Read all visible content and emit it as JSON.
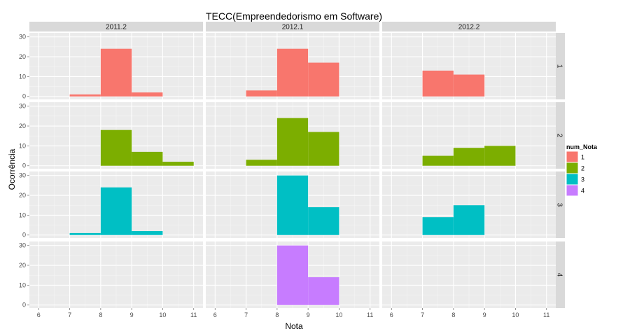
{
  "chart_data": {
    "type": "bar",
    "title": "TECC(Empreendedorismo em Software)",
    "xlabel": "Nota",
    "ylabel": "Ocorrência",
    "xlim": [
      5.7,
      11.3
    ],
    "ylim": [
      0,
      32
    ],
    "x_ticks": [
      "6",
      "7",
      "8",
      "9",
      "10",
      "11"
    ],
    "y_ticks": [
      "0",
      "10",
      "20",
      "30"
    ],
    "grid": true,
    "legend": {
      "title": "num_Nota",
      "position": "right"
    },
    "column_facets": [
      "2011.2",
      "2012.1",
      "2012.2"
    ],
    "row_facets": [
      "1",
      "2",
      "3",
      "4"
    ],
    "series": [
      {
        "name": "1",
        "color": "#F8766D"
      },
      {
        "name": "2",
        "color": "#7CAE00"
      },
      {
        "name": "3",
        "color": "#00BFC4"
      },
      {
        "name": "4",
        "color": "#C77CFF"
      }
    ],
    "panels": [
      {
        "col": "2011.2",
        "row": "1",
        "bars": [
          {
            "x0": 7,
            "x1": 8,
            "count": 1
          },
          {
            "x0": 8,
            "x1": 9,
            "count": 24
          },
          {
            "x0": 9,
            "x1": 10,
            "count": 2
          }
        ]
      },
      {
        "col": "2012.1",
        "row": "1",
        "bars": [
          {
            "x0": 7,
            "x1": 8,
            "count": 3
          },
          {
            "x0": 8,
            "x1": 9,
            "count": 24
          },
          {
            "x0": 9,
            "x1": 10,
            "count": 17
          }
        ]
      },
      {
        "col": "2012.2",
        "row": "1",
        "bars": [
          {
            "x0": 7,
            "x1": 8,
            "count": 13
          },
          {
            "x0": 8,
            "x1": 9,
            "count": 11
          }
        ]
      },
      {
        "col": "2011.2",
        "row": "2",
        "bars": [
          {
            "x0": 8,
            "x1": 9,
            "count": 18
          },
          {
            "x0": 9,
            "x1": 10,
            "count": 7
          },
          {
            "x0": 10,
            "x1": 11,
            "count": 2
          }
        ]
      },
      {
        "col": "2012.1",
        "row": "2",
        "bars": [
          {
            "x0": 7,
            "x1": 8,
            "count": 3
          },
          {
            "x0": 8,
            "x1": 9,
            "count": 24
          },
          {
            "x0": 9,
            "x1": 10,
            "count": 17
          }
        ]
      },
      {
        "col": "2012.2",
        "row": "2",
        "bars": [
          {
            "x0": 7,
            "x1": 8,
            "count": 5
          },
          {
            "x0": 8,
            "x1": 9,
            "count": 9
          },
          {
            "x0": 9,
            "x1": 10,
            "count": 10
          }
        ]
      },
      {
        "col": "2011.2",
        "row": "3",
        "bars": [
          {
            "x0": 7,
            "x1": 8,
            "count": 1
          },
          {
            "x0": 8,
            "x1": 9,
            "count": 24
          },
          {
            "x0": 9,
            "x1": 10,
            "count": 2
          }
        ]
      },
      {
        "col": "2012.1",
        "row": "3",
        "bars": [
          {
            "x0": 8,
            "x1": 9,
            "count": 30
          },
          {
            "x0": 9,
            "x1": 10,
            "count": 14
          }
        ]
      },
      {
        "col": "2012.2",
        "row": "3",
        "bars": [
          {
            "x0": 7,
            "x1": 8,
            "count": 9
          },
          {
            "x0": 8,
            "x1": 9,
            "count": 15
          }
        ]
      },
      {
        "col": "2011.2",
        "row": "4",
        "bars": []
      },
      {
        "col": "2012.1",
        "row": "4",
        "bars": [
          {
            "x0": 8,
            "x1": 9,
            "count": 30
          },
          {
            "x0": 9,
            "x1": 10,
            "count": 14
          }
        ]
      },
      {
        "col": "2012.2",
        "row": "4",
        "bars": []
      }
    ]
  }
}
